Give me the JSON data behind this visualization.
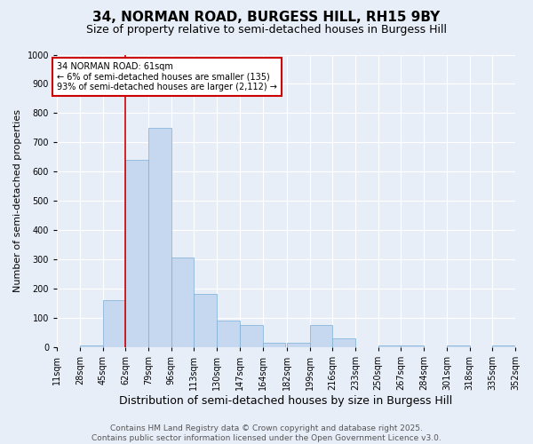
{
  "title1": "34, NORMAN ROAD, BURGESS HILL, RH15 9BY",
  "title2": "Size of property relative to semi-detached houses in Burgess Hill",
  "xlabel": "Distribution of semi-detached houses by size in Burgess Hill",
  "ylabel": "Number of semi-detached properties",
  "bin_edges": [
    11,
    28,
    45,
    62,
    79,
    96,
    113,
    130,
    147,
    164,
    182,
    199,
    216,
    233,
    250,
    267,
    284,
    301,
    318,
    335,
    352
  ],
  "bar_heights": [
    0,
    5,
    160,
    640,
    750,
    305,
    180,
    90,
    75,
    15,
    15,
    75,
    30,
    0,
    5,
    5,
    0,
    5,
    0,
    5
  ],
  "bar_color": "#c5d8f0",
  "bar_edgecolor": "#7aadd4",
  "vline_x": 62,
  "vline_color": "#cc0000",
  "annotation_text": "34 NORMAN ROAD: 61sqm\n← 6% of semi-detached houses are smaller (135)\n93% of semi-detached houses are larger (2,112) →",
  "annotation_box_edgecolor": "#cc0000",
  "annotation_box_facecolor": "#ffffff",
  "ylim": [
    0,
    1000
  ],
  "yticks": [
    0,
    100,
    200,
    300,
    400,
    500,
    600,
    700,
    800,
    900,
    1000
  ],
  "bg_color": "#e8eef8",
  "grid_color": "#ffffff",
  "footer1": "Contains HM Land Registry data © Crown copyright and database right 2025.",
  "footer2": "Contains public sector information licensed under the Open Government Licence v3.0.",
  "title1_fontsize": 11,
  "title2_fontsize": 9,
  "xlabel_fontsize": 9,
  "ylabel_fontsize": 8,
  "tick_fontsize": 7,
  "footer_fontsize": 6.5
}
